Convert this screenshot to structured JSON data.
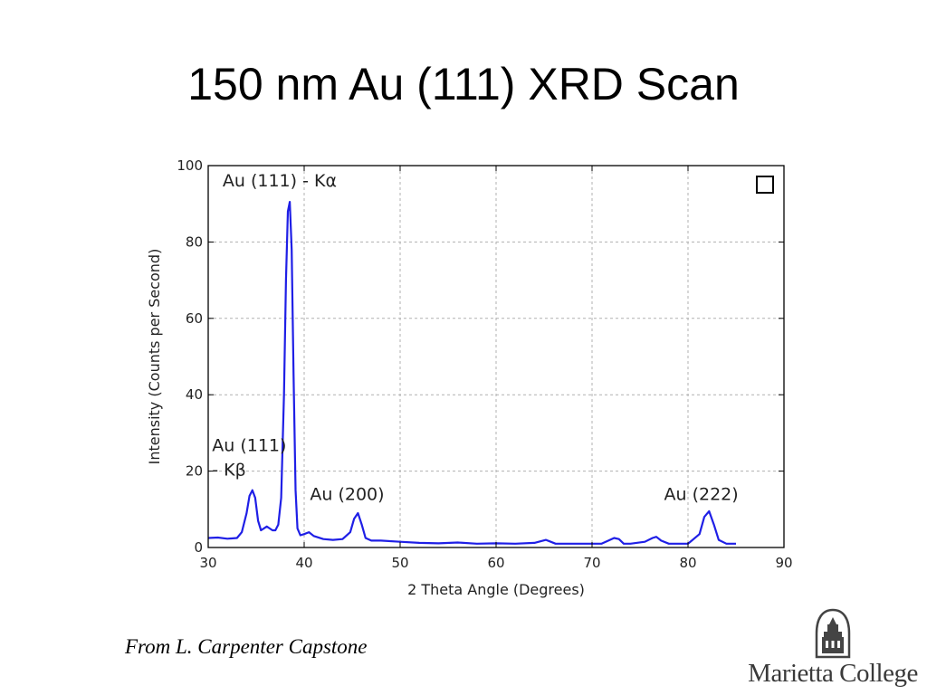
{
  "slide": {
    "title": "150 nm Au (111) XRD Scan",
    "credit": "From L. Carpenter Capstone",
    "logo_text": "Marietta College"
  },
  "colors": {
    "series": "#1f1fe6",
    "grid": "#b0b0b0",
    "text": "#222222"
  },
  "chart_data": {
    "type": "line",
    "title": "",
    "xlabel": "2 Theta Angle (Degrees)",
    "ylabel": "Intensity (Counts per Second)",
    "xlim": [
      30,
      90
    ],
    "ylim": [
      0,
      100
    ],
    "xticks": [
      30,
      40,
      50,
      60,
      70,
      80,
      90
    ],
    "yticks": [
      0,
      20,
      40,
      60,
      80,
      100
    ],
    "grid": true,
    "legend": "top-right (empty box)",
    "annotations": [
      {
        "lines": [
          "Au (111) - Kα"
        ],
        "x": 31.5,
        "y": 94.5
      },
      {
        "lines": [
          "Au (111)",
          "- Kβ"
        ],
        "x": 30.4,
        "y": 25.2
      },
      {
        "lines": [
          "Au (200)"
        ],
        "x": 40.6,
        "y": 12.5
      },
      {
        "lines": [
          "Au (222)"
        ],
        "x": 77.5,
        "y": 12.5
      }
    ],
    "series": [
      {
        "x": [
          30,
          31,
          32,
          33,
          33.5,
          34,
          34.3,
          34.6,
          34.9,
          35.2,
          35.5,
          35.8,
          36.1,
          36.4,
          36.7,
          37,
          37.3,
          37.6,
          37.9,
          38.1,
          38.3,
          38.5,
          38.7,
          38.9,
          39.1,
          39.3,
          39.6,
          40,
          40.5,
          41,
          42,
          43,
          44,
          44.8,
          45.2,
          45.6,
          46,
          46.4,
          47,
          48,
          50,
          52,
          54,
          56,
          58,
          60,
          62,
          64,
          65.2,
          65.7,
          66.2,
          67,
          69,
          71,
          72.3,
          72.8,
          73.3,
          74,
          75.5,
          76.3,
          76.7,
          77.2,
          78,
          80,
          81.2,
          81.7,
          82.2,
          82.7,
          83.2,
          84,
          85
        ],
        "y": [
          2.5,
          2.6,
          2.3,
          2.5,
          4,
          9,
          13.5,
          15,
          13,
          7,
          4.5,
          5,
          5.5,
          5,
          4.5,
          4.5,
          6,
          13,
          40,
          70,
          88,
          90.5,
          78,
          45,
          15,
          5,
          3.2,
          3.5,
          4,
          3,
          2.2,
          2,
          2.2,
          4,
          7.5,
          9,
          6,
          2.5,
          1.8,
          1.8,
          1.5,
          1.2,
          1.1,
          1.3,
          1,
          1.1,
          1,
          1.2,
          2,
          1.5,
          1,
          1,
          1,
          1,
          2.5,
          2.2,
          1,
          1,
          1.5,
          2.5,
          2.8,
          1.8,
          1,
          1,
          3.5,
          8,
          9.5,
          6,
          2,
          1,
          1
        ]
      }
    ]
  }
}
